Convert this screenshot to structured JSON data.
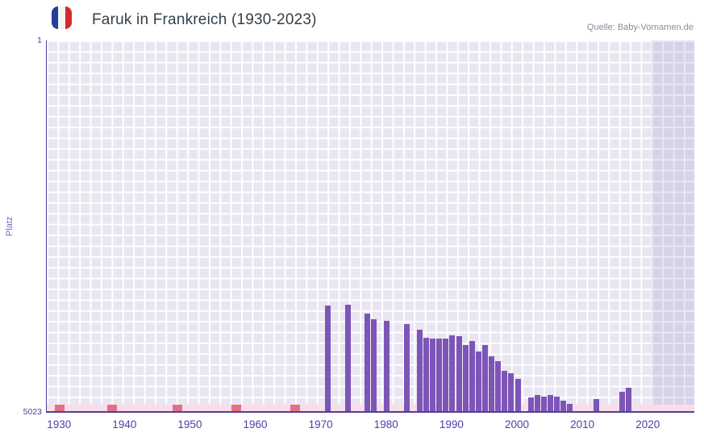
{
  "header": {
    "title": "Faruk in Frankreich (1930-2023)",
    "source": "Quelle: Baby-Vornamen.de",
    "flag": "france-flag-icon"
  },
  "chart_data": {
    "type": "bar",
    "title": "Faruk in Frankreich (1930-2023)",
    "xlabel": "",
    "ylabel": "Platz",
    "y_axis": {
      "min": 1,
      "max": 5023,
      "inverted": true,
      "top_label": "1",
      "bottom_label": "5023"
    },
    "x_range": [
      1928,
      2027
    ],
    "x_ticks": [
      1930,
      1940,
      1950,
      1960,
      1970,
      1980,
      1990,
      2000,
      2010,
      2020
    ],
    "grid": true,
    "legend_visible": false,
    "highlight_band": {
      "from": 2020.5,
      "to": 2027
    },
    "no_data_strip": {
      "years_marked": [
        1930,
        1938,
        1948,
        1957,
        1966
      ]
    },
    "series": [
      {
        "name": "Platz",
        "points": [
          {
            "year": 1971,
            "rank": 3590
          },
          {
            "year": 1974,
            "rank": 3585
          },
          {
            "year": 1977,
            "rank": 3700
          },
          {
            "year": 1978,
            "rank": 3775
          },
          {
            "year": 1980,
            "rank": 3795
          },
          {
            "year": 1983,
            "rank": 3840
          },
          {
            "year": 1985,
            "rank": 3915
          },
          {
            "year": 1986,
            "rank": 4025
          },
          {
            "year": 1987,
            "rank": 4045
          },
          {
            "year": 1988,
            "rank": 4045
          },
          {
            "year": 1989,
            "rank": 4045
          },
          {
            "year": 1990,
            "rank": 4000
          },
          {
            "year": 1991,
            "rank": 4005
          },
          {
            "year": 1992,
            "rank": 4130
          },
          {
            "year": 1993,
            "rank": 4075
          },
          {
            "year": 1994,
            "rank": 4210
          },
          {
            "year": 1995,
            "rank": 4130
          },
          {
            "year": 1996,
            "rank": 4275
          },
          {
            "year": 1997,
            "rank": 4350
          },
          {
            "year": 1998,
            "rank": 4480
          },
          {
            "year": 1999,
            "rank": 4510
          },
          {
            "year": 2000,
            "rank": 4590
          },
          {
            "year": 2002,
            "rank": 4840
          },
          {
            "year": 2003,
            "rank": 4805
          },
          {
            "year": 2004,
            "rank": 4825
          },
          {
            "year": 2005,
            "rank": 4805
          },
          {
            "year": 2006,
            "rank": 4825
          },
          {
            "year": 2007,
            "rank": 4880
          },
          {
            "year": 2008,
            "rank": 4925
          },
          {
            "year": 2012,
            "rank": 4860
          },
          {
            "year": 2016,
            "rank": 4760
          },
          {
            "year": 2017,
            "rank": 4705
          }
        ]
      }
    ],
    "colors": {
      "bar": "#7d55b7",
      "plot_background": "#e9e6f2",
      "grid_line": "#ffffff",
      "highlight_band": "#dad5e9",
      "axis": "#4f3fa0",
      "tick_text": "#4d3fa8",
      "y_label_text": "#7566d2",
      "strip": "#f9dde8",
      "strip_mark": "#e56f86",
      "title_text": "#333f48",
      "source_text": "#8b8b9e"
    }
  }
}
